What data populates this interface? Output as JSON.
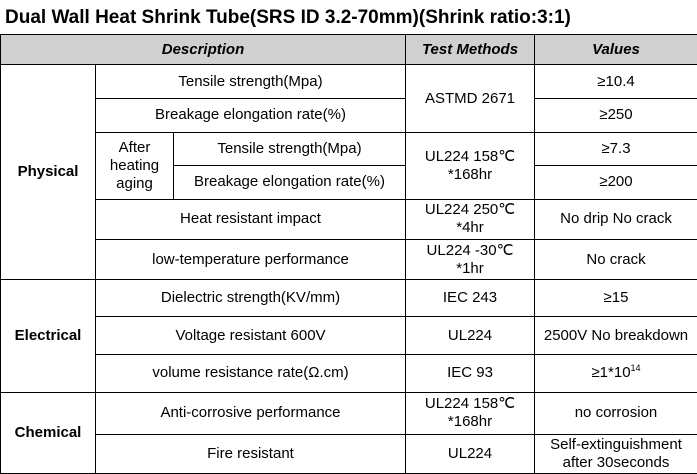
{
  "title": "Dual Wall Heat Shrink Tube(SRS ID 3.2-70mm)(Shrink ratio:3:1)",
  "headers": {
    "description": "Description",
    "test_methods": "Test Methods",
    "values": "Values"
  },
  "physical": {
    "category": "Physical",
    "tensile": "Tensile strength(Mpa)",
    "tensile_value": "≥10.4",
    "breakage": "Breakage elongation rate(%)",
    "breakage_value": "≥250",
    "astm": "ASTMD 2671",
    "after_heating": "After heating aging",
    "aged_tensile": "Tensile strength(Mpa)",
    "aged_tensile_value": "≥7.3",
    "aged_breakage": "Breakage elongation rate(%)",
    "aged_breakage_value": "≥200",
    "aging_method_line1": "UL224 158℃",
    "aging_method_line2": "*168hr",
    "heat_impact": "Heat resistant impact",
    "heat_method_line1": "UL224  250℃",
    "heat_method_line2": "*4hr",
    "heat_value": "No drip  No crack",
    "low_temp": "low-temperature performance",
    "low_temp_method_line1": "UL224  -30℃",
    "low_temp_method_line2": "*1hr",
    "low_temp_value": "No crack"
  },
  "electrical": {
    "category": "Electrical",
    "dielectric": "Dielectric strength(KV/mm)",
    "dielectric_method": "IEC 243",
    "dielectric_value": "≥15",
    "voltage": "Voltage resistant 600V",
    "voltage_method": "UL224",
    "voltage_value": "2500V No breakdown",
    "volume": "volume resistance rate(Ω.cm)",
    "volume_method": "IEC 93",
    "volume_value_base": "≥1*10",
    "volume_value_exp": "14"
  },
  "chemical": {
    "category": "Chemical",
    "corrosive": "Anti-corrosive performance",
    "corrosive_method_line1": "UL224  158℃",
    "corrosive_method_line2": "*168hr",
    "corrosive_value": "no corrosion",
    "fire": "Fire resistant",
    "fire_method": "UL224",
    "fire_value_line1": "Self-extinguishment",
    "fire_value_line2": "after 30seconds"
  }
}
